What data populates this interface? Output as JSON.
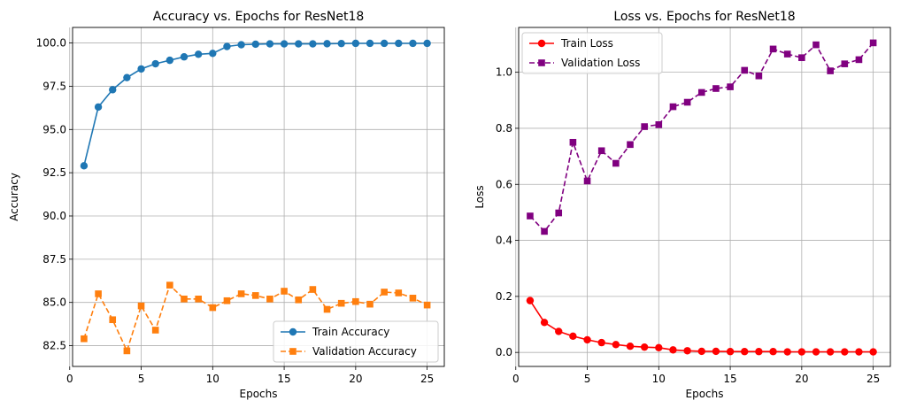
{
  "chart_data": [
    {
      "type": "line",
      "title": "Accuracy vs. Epochs for ResNet18",
      "xlabel": "Epochs",
      "ylabel": "Accuracy",
      "xlim": [
        0.2,
        26.2
      ],
      "ylim": [
        81.3,
        100.9
      ],
      "xticks": [
        0,
        5,
        10,
        15,
        20,
        25
      ],
      "yticks": [
        82.5,
        85.0,
        87.5,
        90.0,
        92.5,
        95.0,
        97.5,
        100.0
      ],
      "ytick_labels": [
        "82.5",
        "85.0",
        "87.5",
        "90.0",
        "92.5",
        "95.0",
        "97.5",
        "100.0"
      ],
      "grid": true,
      "legend_position": "lower right",
      "x": [
        1,
        2,
        3,
        4,
        5,
        6,
        7,
        8,
        9,
        10,
        11,
        12,
        13,
        14,
        15,
        16,
        17,
        18,
        19,
        20,
        21,
        22,
        23,
        24,
        25
      ],
      "series": [
        {
          "name": "Train Accuracy",
          "color": "#1f77b4",
          "marker": "circle",
          "linestyle": "solid",
          "values": [
            92.9,
            96.3,
            97.3,
            98.0,
            98.5,
            98.8,
            99.0,
            99.2,
            99.35,
            99.4,
            99.8,
            99.9,
            99.93,
            99.95,
            99.95,
            99.95,
            99.95,
            99.96,
            99.97,
            99.98,
            99.98,
            99.98,
            99.98,
            99.98,
            99.98
          ]
        },
        {
          "name": "Validation Accuracy",
          "color": "#ff7f0e",
          "marker": "square",
          "linestyle": "dashed",
          "values": [
            82.9,
            85.5,
            84.0,
            82.2,
            84.8,
            83.4,
            86.0,
            85.2,
            85.2,
            84.7,
            85.1,
            85.5,
            85.4,
            85.2,
            85.65,
            85.15,
            85.75,
            84.6,
            84.95,
            85.05,
            84.9,
            85.6,
            85.55,
            85.25,
            84.85
          ]
        }
      ]
    },
    {
      "type": "line",
      "title": "Loss vs. Epochs for ResNet18",
      "xlabel": "Epochs",
      "ylabel": "Loss",
      "xlim": [
        0.2,
        26.2
      ],
      "ylim": [
        -0.05,
        1.16
      ],
      "xticks": [
        0,
        5,
        10,
        15,
        20,
        25
      ],
      "yticks": [
        0.0,
        0.2,
        0.4,
        0.6,
        0.8,
        1.0
      ],
      "ytick_labels": [
        "0.0",
        "0.2",
        "0.4",
        "0.6",
        "0.8",
        "1.0"
      ],
      "grid": true,
      "legend_position": "upper left",
      "x": [
        1,
        2,
        3,
        4,
        5,
        6,
        7,
        8,
        9,
        10,
        11,
        12,
        13,
        14,
        15,
        16,
        17,
        18,
        19,
        20,
        21,
        22,
        23,
        24,
        25
      ],
      "series": [
        {
          "name": "Train Loss",
          "color": "#ff0000",
          "marker": "circle",
          "linestyle": "solid",
          "values": [
            0.185,
            0.107,
            0.075,
            0.058,
            0.045,
            0.035,
            0.028,
            0.022,
            0.019,
            0.017,
            0.009,
            0.006,
            0.004,
            0.004,
            0.003,
            0.003,
            0.003,
            0.003,
            0.002,
            0.002,
            0.002,
            0.002,
            0.002,
            0.002,
            0.002
          ]
        },
        {
          "name": "Validation Loss",
          "color": "#800080",
          "marker": "square",
          "linestyle": "dashed",
          "values": [
            0.487,
            0.432,
            0.498,
            0.75,
            0.612,
            0.72,
            0.675,
            0.742,
            0.806,
            0.813,
            0.877,
            0.893,
            0.928,
            0.942,
            0.948,
            1.007,
            0.987,
            1.083,
            1.065,
            1.052,
            1.098,
            1.005,
            1.03,
            1.045,
            1.105
          ]
        }
      ]
    }
  ]
}
